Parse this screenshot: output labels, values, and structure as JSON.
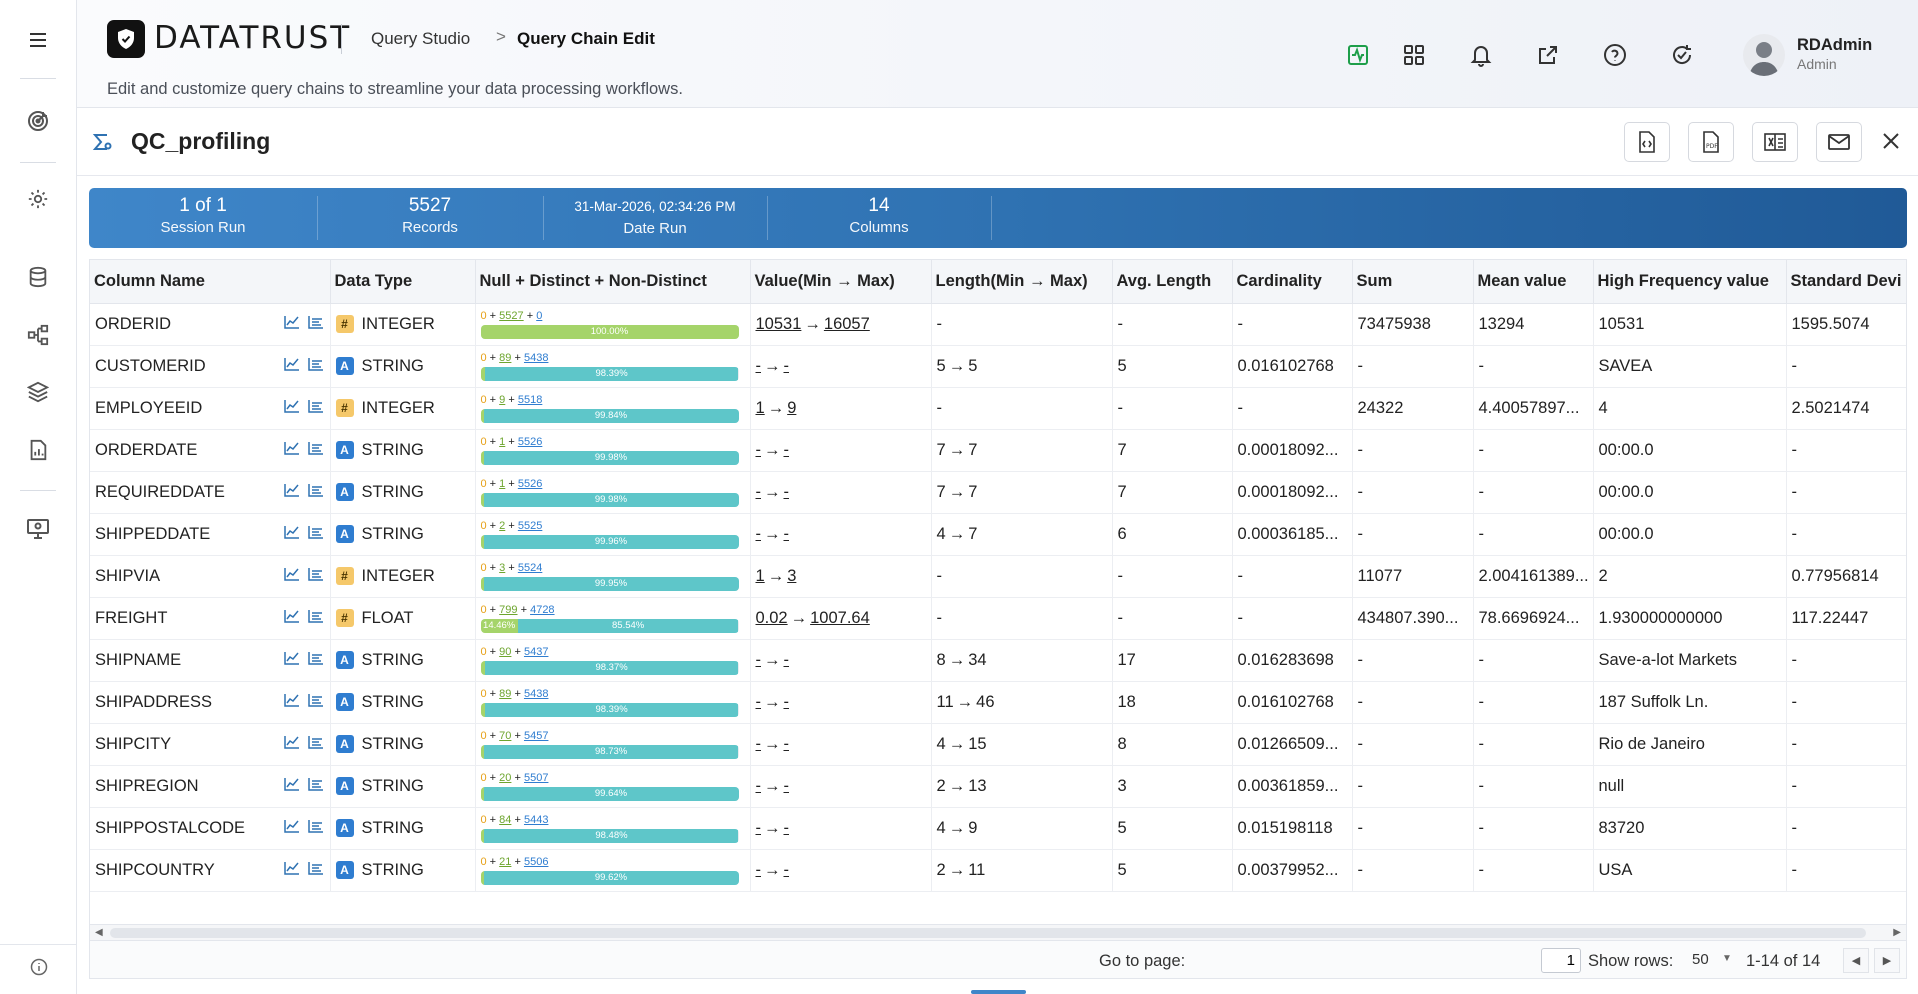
{
  "brand": {
    "logo_text": "DATATRUST"
  },
  "breadcrumb": {
    "parent": "Query Studio",
    "separator": ">",
    "current": "Query Chain Edit"
  },
  "subtitle": "Edit and customize query chains to streamline your data processing workflows.",
  "user": {
    "name": "RDAdmin",
    "role": "Admin"
  },
  "sidebar": {
    "items": [
      {
        "icon": "menu-icon"
      },
      {
        "icon": "target-icon"
      },
      {
        "icon": "gear-icon"
      },
      {
        "icon": "database-icon"
      },
      {
        "icon": "flow-icon"
      },
      {
        "icon": "layers-icon"
      },
      {
        "icon": "report-icon"
      },
      {
        "icon": "monitor-icon"
      },
      {
        "icon": "info-icon"
      }
    ]
  },
  "page": {
    "title": "QC_profiling"
  },
  "stats": [
    {
      "value": "1 of 1",
      "label": "Session Run"
    },
    {
      "value": "5527",
      "label": "Records"
    },
    {
      "value": "31-Mar-2026, 02:34:26 PM",
      "label": "Date Run"
    },
    {
      "value": "14",
      "label": "Columns"
    }
  ],
  "table": {
    "headers": [
      "Column Name",
      "Data Type",
      "Null + Distinct + Non-Distinct",
      "Value(Min → Max)",
      "Length(Min → Max)",
      "Avg. Length",
      "Cardinality",
      "Sum",
      "Mean value",
      "High Frequency value",
      "Standard Devi"
    ],
    "rows": [
      {
        "name": "ORDERID",
        "type_badge": "#",
        "type": "INTEGER",
        "nul": "0",
        "dist": "5527",
        "nondist": "0",
        "d_pct_label": "100.00%",
        "nd_pct_label": "",
        "d_frac": 1.0,
        "nd_frac": 0,
        "vmin": "10531",
        "vmax": "16057",
        "lmin": "",
        "lmax": "",
        "len": "-",
        "avg": "-",
        "card": "-",
        "sum": "73475938",
        "mean": "13294",
        "hf": "10531",
        "sd": "1595.5074"
      },
      {
        "name": "CUSTOMERID",
        "type_badge": "A",
        "type": "STRING",
        "nul": "0",
        "dist": "89",
        "nondist": "5438",
        "d_pct_label": "",
        "nd_pct_label": "98.39%",
        "d_frac": 0.0161,
        "nd_frac": 0.9839,
        "vmin": "-",
        "vmax": "-",
        "lmin": "5",
        "lmax": "5",
        "len": "",
        "avg": "5",
        "card": "0.016102768",
        "sum": "-",
        "mean": "-",
        "hf": "SAVEA",
        "sd": "-"
      },
      {
        "name": "EMPLOYEEID",
        "type_badge": "#",
        "type": "INTEGER",
        "nul": "0",
        "dist": "9",
        "nondist": "5518",
        "d_pct_label": "",
        "nd_pct_label": "99.84%",
        "d_frac": 0.0016,
        "nd_frac": 0.9984,
        "vmin": "1",
        "vmax": "9",
        "lmin": "",
        "lmax": "",
        "len": "-",
        "avg": "-",
        "card": "-",
        "sum": "24322",
        "mean": "4.40057897...",
        "hf": "4",
        "sd": "2.5021474"
      },
      {
        "name": "ORDERDATE",
        "type_badge": "A",
        "type": "STRING",
        "nul": "0",
        "dist": "1",
        "nondist": "5526",
        "d_pct_label": "",
        "nd_pct_label": "99.98%",
        "d_frac": 0.0002,
        "nd_frac": 0.9998,
        "vmin": "-",
        "vmax": "-",
        "lmin": "7",
        "lmax": "7",
        "len": "",
        "avg": "7",
        "card": "0.00018092...",
        "sum": "-",
        "mean": "-",
        "hf": "00:00.0",
        "sd": "-"
      },
      {
        "name": "REQUIREDDATE",
        "type_badge": "A",
        "type": "STRING",
        "nul": "0",
        "dist": "1",
        "nondist": "5526",
        "d_pct_label": "",
        "nd_pct_label": "99.98%",
        "d_frac": 0.0002,
        "nd_frac": 0.9998,
        "vmin": "-",
        "vmax": "-",
        "lmin": "7",
        "lmax": "7",
        "len": "",
        "avg": "7",
        "card": "0.00018092...",
        "sum": "-",
        "mean": "-",
        "hf": "00:00.0",
        "sd": "-"
      },
      {
        "name": "SHIPPEDDATE",
        "type_badge": "A",
        "type": "STRING",
        "nul": "0",
        "dist": "2",
        "nondist": "5525",
        "d_pct_label": "",
        "nd_pct_label": "99.96%",
        "d_frac": 0.0004,
        "nd_frac": 0.9996,
        "vmin": "-",
        "vmax": "-",
        "lmin": "4",
        "lmax": "7",
        "len": "",
        "avg": "6",
        "card": "0.00036185...",
        "sum": "-",
        "mean": "-",
        "hf": "00:00.0",
        "sd": "-"
      },
      {
        "name": "SHIPVIA",
        "type_badge": "#",
        "type": "INTEGER",
        "nul": "0",
        "dist": "3",
        "nondist": "5524",
        "d_pct_label": "",
        "nd_pct_label": "99.95%",
        "d_frac": 0.0005,
        "nd_frac": 0.9995,
        "vmin": "1",
        "vmax": "3",
        "lmin": "",
        "lmax": "",
        "len": "-",
        "avg": "-",
        "card": "-",
        "sum": "11077",
        "mean": "2.004161389...",
        "hf": "2",
        "sd": "0.77956814"
      },
      {
        "name": "FREIGHT",
        "type_badge": "#",
        "type": "FLOAT",
        "nul": "0",
        "dist": "799",
        "nondist": "4728",
        "d_pct_label": "14.46%",
        "nd_pct_label": "85.54%",
        "d_frac": 0.1446,
        "nd_frac": 0.8554,
        "vmin": "0.02",
        "vmax": "1007.64",
        "lmin": "",
        "lmax": "",
        "len": "-",
        "avg": "-",
        "card": "-",
        "sum": "434807.390...",
        "mean": "78.6696924...",
        "hf": "1.930000000000",
        "sd": "117.22447"
      },
      {
        "name": "SHIPNAME",
        "type_badge": "A",
        "type": "STRING",
        "nul": "0",
        "dist": "90",
        "nondist": "5437",
        "d_pct_label": "",
        "nd_pct_label": "98.37%",
        "d_frac": 0.0163,
        "nd_frac": 0.9837,
        "vmin": "-",
        "vmax": "-",
        "lmin": "8",
        "lmax": "34",
        "len": "",
        "avg": "17",
        "card": "0.016283698",
        "sum": "-",
        "mean": "-",
        "hf": "Save-a-lot Markets",
        "sd": "-"
      },
      {
        "name": "SHIPADDRESS",
        "type_badge": "A",
        "type": "STRING",
        "nul": "0",
        "dist": "89",
        "nondist": "5438",
        "d_pct_label": "",
        "nd_pct_label": "98.39%",
        "d_frac": 0.0161,
        "nd_frac": 0.9839,
        "vmin": "-",
        "vmax": "-",
        "lmin": "11",
        "lmax": "46",
        "len": "",
        "avg": "18",
        "card": "0.016102768",
        "sum": "-",
        "mean": "-",
        "hf": "187 Suffolk Ln.",
        "sd": "-"
      },
      {
        "name": "SHIPCITY",
        "type_badge": "A",
        "type": "STRING",
        "nul": "0",
        "dist": "70",
        "nondist": "5457",
        "d_pct_label": "",
        "nd_pct_label": "98.73%",
        "d_frac": 0.0127,
        "nd_frac": 0.9873,
        "vmin": "-",
        "vmax": "-",
        "lmin": "4",
        "lmax": "15",
        "len": "",
        "avg": "8",
        "card": "0.01266509...",
        "sum": "-",
        "mean": "-",
        "hf": "Rio de Janeiro",
        "sd": "-"
      },
      {
        "name": "SHIPREGION",
        "type_badge": "A",
        "type": "STRING",
        "nul": "0",
        "dist": "20",
        "nondist": "5507",
        "d_pct_label": "",
        "nd_pct_label": "99.64%",
        "d_frac": 0.0036,
        "nd_frac": 0.9964,
        "vmin": "-",
        "vmax": "-",
        "lmin": "2",
        "lmax": "13",
        "len": "",
        "avg": "3",
        "card": "0.00361859...",
        "sum": "-",
        "mean": "-",
        "hf": "null",
        "sd": "-"
      },
      {
        "name": "SHIPPOSTALCODE",
        "type_badge": "A",
        "type": "STRING",
        "nul": "0",
        "dist": "84",
        "nondist": "5443",
        "d_pct_label": "",
        "nd_pct_label": "98.48%",
        "d_frac": 0.0152,
        "nd_frac": 0.9848,
        "vmin": "-",
        "vmax": "-",
        "lmin": "4",
        "lmax": "9",
        "len": "",
        "avg": "5",
        "card": "0.015198118",
        "sum": "-",
        "mean": "-",
        "hf": "83720",
        "sd": "-"
      },
      {
        "name": "SHIPCOUNTRY",
        "type_badge": "A",
        "type": "STRING",
        "nul": "0",
        "dist": "21",
        "nondist": "5506",
        "d_pct_label": "",
        "nd_pct_label": "99.62%",
        "d_frac": 0.0038,
        "nd_frac": 0.9962,
        "vmin": "-",
        "vmax": "-",
        "lmin": "2",
        "lmax": "11",
        "len": "",
        "avg": "5",
        "card": "0.00379952...",
        "sum": "-",
        "mean": "-",
        "hf": "USA",
        "sd": "-"
      }
    ]
  },
  "pagination": {
    "goto_label": "Go to page:",
    "page_value": "1",
    "rows_label": "Show rows:",
    "rows_value": "50",
    "range": "1-14 of 14"
  },
  "colors": {
    "accent": "#2f72b2",
    "distinct": "#a5d46a",
    "non_distinct": "#5ec6c9",
    "null": "#e6a017"
  }
}
